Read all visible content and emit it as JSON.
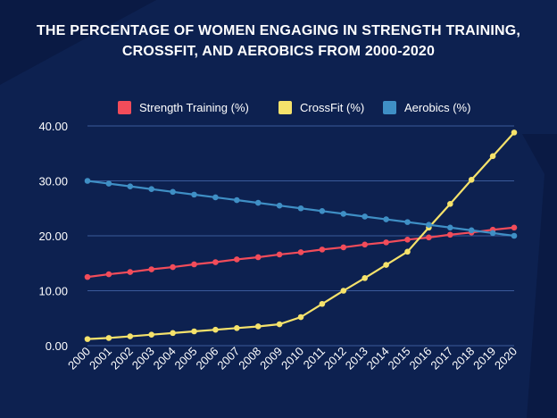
{
  "chart_data": {
    "type": "line",
    "title_line1": "THE PERCENTAGE OF WOMEN ENGAGING IN STRENGTH TRAINING,",
    "title_line2": "CROSSFIT, AND AEROBICS FROM 2000-2020",
    "xlabel": "",
    "ylabel": "",
    "ylim": [
      0,
      40
    ],
    "yticks": [
      "0.00",
      "10.00",
      "20.00",
      "30.00",
      "40.00"
    ],
    "x": [
      "2000",
      "2001",
      "2002",
      "2003",
      "2004",
      "2005",
      "2006",
      "2007",
      "2008",
      "2009",
      "2010",
      "2011",
      "2012",
      "2013",
      "2014",
      "2015",
      "2016",
      "2017",
      "2018",
      "2019",
      "2020"
    ],
    "series": [
      {
        "name": "Strength Training (%)",
        "color": "#f24c5a",
        "values": [
          12.5,
          13.0,
          13.4,
          13.9,
          14.3,
          14.8,
          15.2,
          15.7,
          16.1,
          16.6,
          17.0,
          17.5,
          17.9,
          18.4,
          18.8,
          19.3,
          19.7,
          20.2,
          20.6,
          21.1,
          21.5
        ]
      },
      {
        "name": "CrossFit (%)",
        "color": "#f5e26b",
        "values": [
          1.2,
          1.4,
          1.7,
          2.0,
          2.3,
          2.6,
          2.9,
          3.2,
          3.5,
          3.9,
          5.2,
          7.6,
          10.0,
          12.3,
          14.7,
          17.1,
          21.5,
          25.8,
          30.2,
          34.5,
          38.8
        ]
      },
      {
        "name": "Aerobics (%)",
        "color": "#3f8fc5",
        "values": [
          30.0,
          29.5,
          29.0,
          28.5,
          28.0,
          27.5,
          27.0,
          26.5,
          26.0,
          25.5,
          25.0,
          24.5,
          24.0,
          23.5,
          23.0,
          22.5,
          22.0,
          21.5,
          21.0,
          20.5,
          20.0
        ]
      }
    ]
  }
}
